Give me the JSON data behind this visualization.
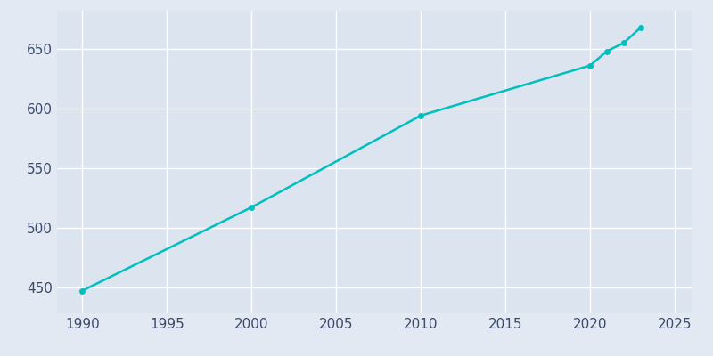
{
  "years": [
    1990,
    2000,
    2010,
    2020,
    2021,
    2022,
    2023
  ],
  "population": [
    447,
    517,
    594,
    636,
    648,
    655,
    668
  ],
  "line_color": "#00BFBF",
  "marker_color": "#00BFBF",
  "background_color": "#E3E9F2",
  "plot_bg_color": "#DCE4EF",
  "grid_color": "#FFFFFF",
  "text_color": "#3B4A6B",
  "xlim": [
    1988.5,
    2026
  ],
  "ylim": [
    428,
    682
  ],
  "xticks": [
    1990,
    1995,
    2000,
    2005,
    2010,
    2015,
    2020,
    2025
  ],
  "yticks": [
    450,
    500,
    550,
    600,
    650
  ],
  "linewidth": 1.8,
  "markersize": 5,
  "tick_labelsize": 11
}
